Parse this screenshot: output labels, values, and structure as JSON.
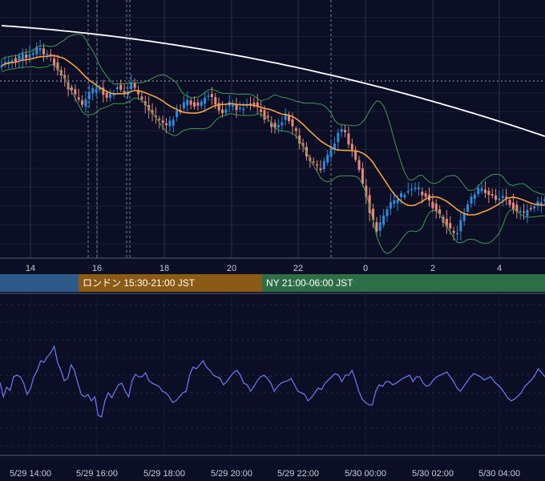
{
  "colors": {
    "background": "#0b0e24",
    "grid": "#3a3f5c",
    "up_candle": "#2f8bd8",
    "down_candle": "#e9897c",
    "ma_short": "#f5a142",
    "ma_long": "#ffffff",
    "bollinger": "#3f9b54",
    "oscillator": "#6a73e8",
    "tokyo_session": "#2e5a8a",
    "london_session": "#8b5a14",
    "ny_session": "#2e6e47"
  },
  "sessions": [
    {
      "label": "",
      "color": "#2e5a8a"
    },
    {
      "label": "ロンドン 15:30-21:00 JST",
      "color": "#8b5a14"
    },
    {
      "label": "NY 21:00-06:00 JST",
      "color": "#2e6e47"
    }
  ],
  "chart_data": [
    {
      "type": "candlestick",
      "x_tick_labels": [
        "14",
        "16",
        "18",
        "20",
        "22",
        "0",
        "2",
        "4"
      ],
      "overlays": [
        "bollinger bands",
        "moving average (orange)",
        "moving average (white)"
      ],
      "price_path": [
        82,
        78,
        76,
        74,
        75,
        72,
        70,
        73,
        70,
        66,
        60,
        62,
        67,
        70,
        72,
        78,
        88,
        96,
        100,
        108,
        112,
        120,
        126,
        130,
        124,
        118,
        114,
        110,
        112,
        118,
        122,
        120,
        114,
        108,
        112,
        116,
        112,
        106,
        112,
        118,
        124,
        130,
        138,
        142,
        146,
        150,
        152,
        156,
        154,
        148,
        140,
        136,
        130,
        126,
        128,
        130,
        132,
        128,
        122,
        120,
        124,
        130,
        136,
        138,
        134,
        130,
        132,
        134,
        136,
        132,
        130,
        128,
        130,
        134,
        140,
        146,
        150,
        156,
        160,
        158,
        152,
        146,
        150,
        158,
        166,
        176,
        186,
        194,
        200,
        206,
        210,
        212,
        204,
        196,
        186,
        176,
        166,
        160,
        168,
        178,
        190,
        200,
        210,
        230,
        246,
        262,
        276,
        286,
        280,
        270,
        262,
        256,
        252,
        248,
        244,
        242,
        240,
        238,
        236,
        238,
        240,
        244,
        250,
        256,
        262,
        268,
        274,
        280,
        286,
        290,
        288,
        278,
        266,
        256,
        248,
        244,
        238,
        236,
        238,
        242,
        246,
        248,
        246,
        244,
        248,
        252,
        258,
        262,
        266,
        268,
        262,
        258,
        256,
        254,
        252,
        250
      ]
    },
    {
      "type": "line",
      "x_tick_labels": [
        "5/29 14:00",
        "5/29 16:00",
        "5/29 18:00",
        "5/29 20:00",
        "5/29 22:00",
        "5/30 00:00",
        "5/30 02:00",
        "5/30 04:00"
      ],
      "series": [
        {
          "values": [
            477,
            495,
            483,
            487,
            470,
            468,
            470,
            478,
            492,
            485,
            470,
            462,
            450,
            452,
            445,
            440,
            432,
            452,
            462,
            475,
            472,
            455,
            462,
            478,
            492,
            495,
            492,
            500,
            495,
            518,
            520,
            500,
            490,
            496,
            488,
            480,
            478,
            488,
            495,
            475,
            467,
            470,
            470,
            465,
            475,
            478,
            480,
            482,
            488,
            490,
            495,
            502,
            500,
            495,
            490,
            488,
            468,
            458,
            460,
            455,
            450,
            458,
            462,
            468,
            470,
            472,
            480,
            476,
            470,
            465,
            462,
            468,
            478,
            480,
            488,
            482,
            475,
            470,
            468,
            472,
            478,
            488,
            482,
            478,
            476,
            475,
            472,
            480,
            488,
            490,
            492,
            500,
            496,
            490,
            484,
            486,
            478,
            474,
            470,
            466,
            468,
            476,
            468,
            468,
            462,
            474,
            488,
            498,
            502,
            505,
            505,
            488,
            480,
            482,
            476,
            476,
            480,
            478,
            475,
            472,
            470,
            468,
            476,
            470,
            470,
            478,
            482,
            480,
            474,
            470,
            468,
            466,
            464,
            470,
            476,
            484,
            488,
            482,
            476,
            470,
            466,
            468,
            470,
            474,
            472,
            470,
            476,
            480,
            484,
            490,
            496,
            500,
            498,
            494,
            490,
            482,
            478,
            474,
            468,
            460,
            465,
            470
          ]
        }
      ]
    }
  ]
}
